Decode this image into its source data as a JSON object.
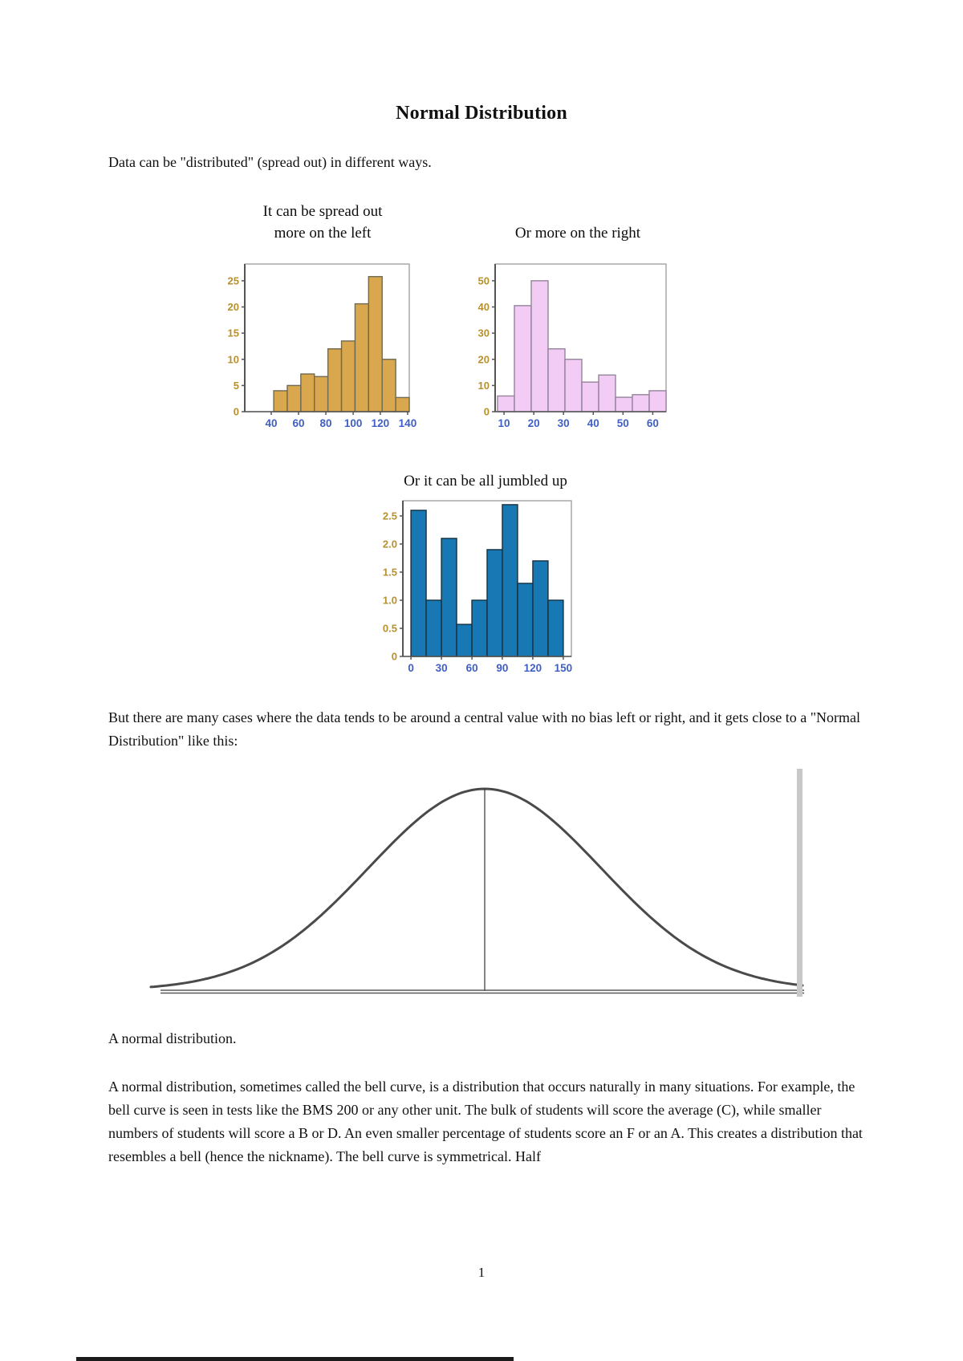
{
  "page": {
    "title": "Normal Distribution",
    "intro": "Data can be \"distributed\" (spread out) in different ways.",
    "para_central": "But there are many cases where the data tends to be around a central value with no bias left or right, and it gets close to a \"Normal Distribution\" like this:",
    "caption": "A normal distribution.",
    "body": "A normal distribution, sometimes called the bell curve, is a distribution that occurs naturally in many situations. For example, the bell curve is seen in tests like the BMS 200 or any other unit. The bulk of students will score the average (C), while smaller numbers of students will score a B or D. An even smaller percentage of students score an F or an A. This creates a distribution that resembles a bell (hence the nickname). The bell curve is symmetrical. Half",
    "page_number": "1"
  },
  "colors": {
    "tan_fill": "#D8A74E",
    "tan_edge": "#6F6A52",
    "pink_fill": "#F2CCF4",
    "pink_edge": "#93849B",
    "blue_fill": "#1778B4",
    "blue_edge": "#16303F",
    "y_tick_label": "#B8902D",
    "x_tick_label": "#3F5FC5",
    "curve": "#4A4A4A",
    "axis": "#555555",
    "scrollbar": "#C8C8C8"
  },
  "chart_data": [
    {
      "type": "bar",
      "title": "It can be spread out more on the left",
      "title_lines": [
        "It can be spread out",
        "more on the left"
      ],
      "values": [
        4,
        5,
        7.2,
        6.7,
        12,
        13.5,
        20.6,
        25.8,
        10,
        2.7
      ],
      "x_ticks": [
        40,
        60,
        80,
        100,
        120,
        140
      ],
      "y_ticks": [
        0,
        5,
        10,
        15,
        20,
        25
      ],
      "y_tick_labels": [
        "0",
        "5",
        "10",
        "15",
        "20",
        "25"
      ],
      "ylim": [
        0,
        28.2
      ],
      "grid": "off",
      "bar_color": "#D8A74E",
      "bar_edge_color": "#6F6A52"
    },
    {
      "type": "bar",
      "title": "Or more on the right",
      "title_lines": [
        "Or more on the right"
      ],
      "values": [
        6,
        40.5,
        50,
        24,
        20,
        11.3,
        14,
        5.5,
        6.5,
        8
      ],
      "x_ticks": [
        10,
        20,
        30,
        40,
        50,
        60
      ],
      "y_ticks": [
        0,
        10,
        20,
        30,
        40,
        50
      ],
      "y_tick_labels": [
        "0",
        "10",
        "20",
        "30",
        "40",
        "50"
      ],
      "ylim": [
        0,
        56.4
      ],
      "grid": "off",
      "bar_color": "#F2CCF4",
      "bar_edge_color": "#93849B"
    },
    {
      "type": "bar",
      "title": "Or it can be all jumbled up",
      "title_lines": [
        "Or it can be all jumbled up"
      ],
      "values": [
        2.6,
        1.0,
        2.1,
        0.57,
        1.0,
        1.9,
        2.7,
        1.3,
        1.7,
        1.0
      ],
      "x_ticks": [
        0,
        30,
        60,
        90,
        120,
        150
      ],
      "y_ticks": [
        0,
        0.5,
        1.0,
        1.5,
        2.0,
        2.5
      ],
      "y_tick_labels": [
        "0",
        "0.5",
        "1.0",
        "1.5",
        "2.0",
        "2.5"
      ],
      "ylim": [
        0,
        2.77
      ],
      "grid": "off",
      "bar_color": "#1778B4",
      "bar_edge_color": "#16303F"
    },
    {
      "type": "line",
      "title": "",
      "shape": "gaussian bell curve, symmetrical about a central vertical mean line",
      "axis_labels": "none",
      "mean_line": true,
      "baseline": "double horizontal rule"
    }
  ]
}
